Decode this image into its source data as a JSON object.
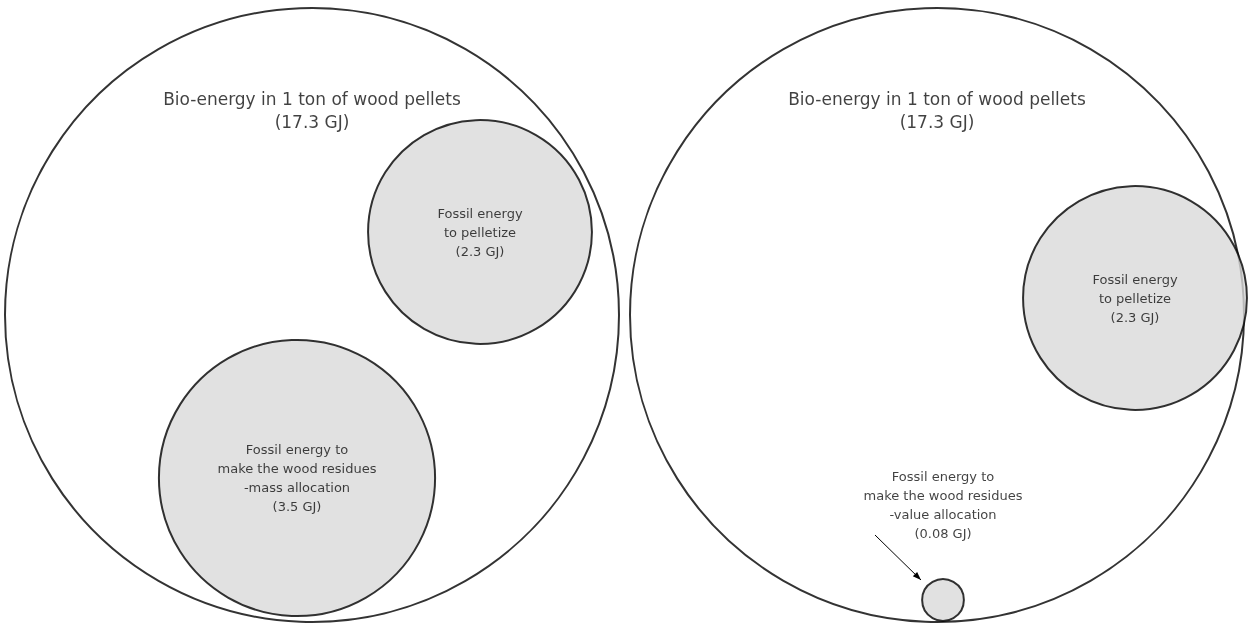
{
  "chart_data": [
    {
      "type": "other",
      "categories": [
        "Bio-energy in 1 ton of wood pellets",
        "Fossil energy\nto pelletize",
        "Fossil energy to\nmake the wood residues\n-mass allocation"
      ],
      "values": [
        17.3,
        2.3,
        3.5
      ],
      "value_labels": [
        "(17.3 GJ)",
        "(2.3 GJ)",
        "(3.5 GJ)"
      ],
      "colors": [
        "#ffffff",
        "#d9d9d9",
        "#d9d9d9"
      ]
    },
    {
      "type": "other",
      "categories": [
        "Bio-energy in 1 ton of wood pellets",
        "Fossil energy\nto pelletize",
        "Fossil energy to\nmake the wood residues\n-value allocation"
      ],
      "values": [
        17.3,
        2.3,
        0.08
      ],
      "value_labels": [
        "(17.3 GJ)",
        "(2.3 GJ)",
        "(0.08 GJ)"
      ],
      "colors": [
        "#ffffff",
        "#d9d9d9",
        "#d9d9d9"
      ]
    }
  ]
}
